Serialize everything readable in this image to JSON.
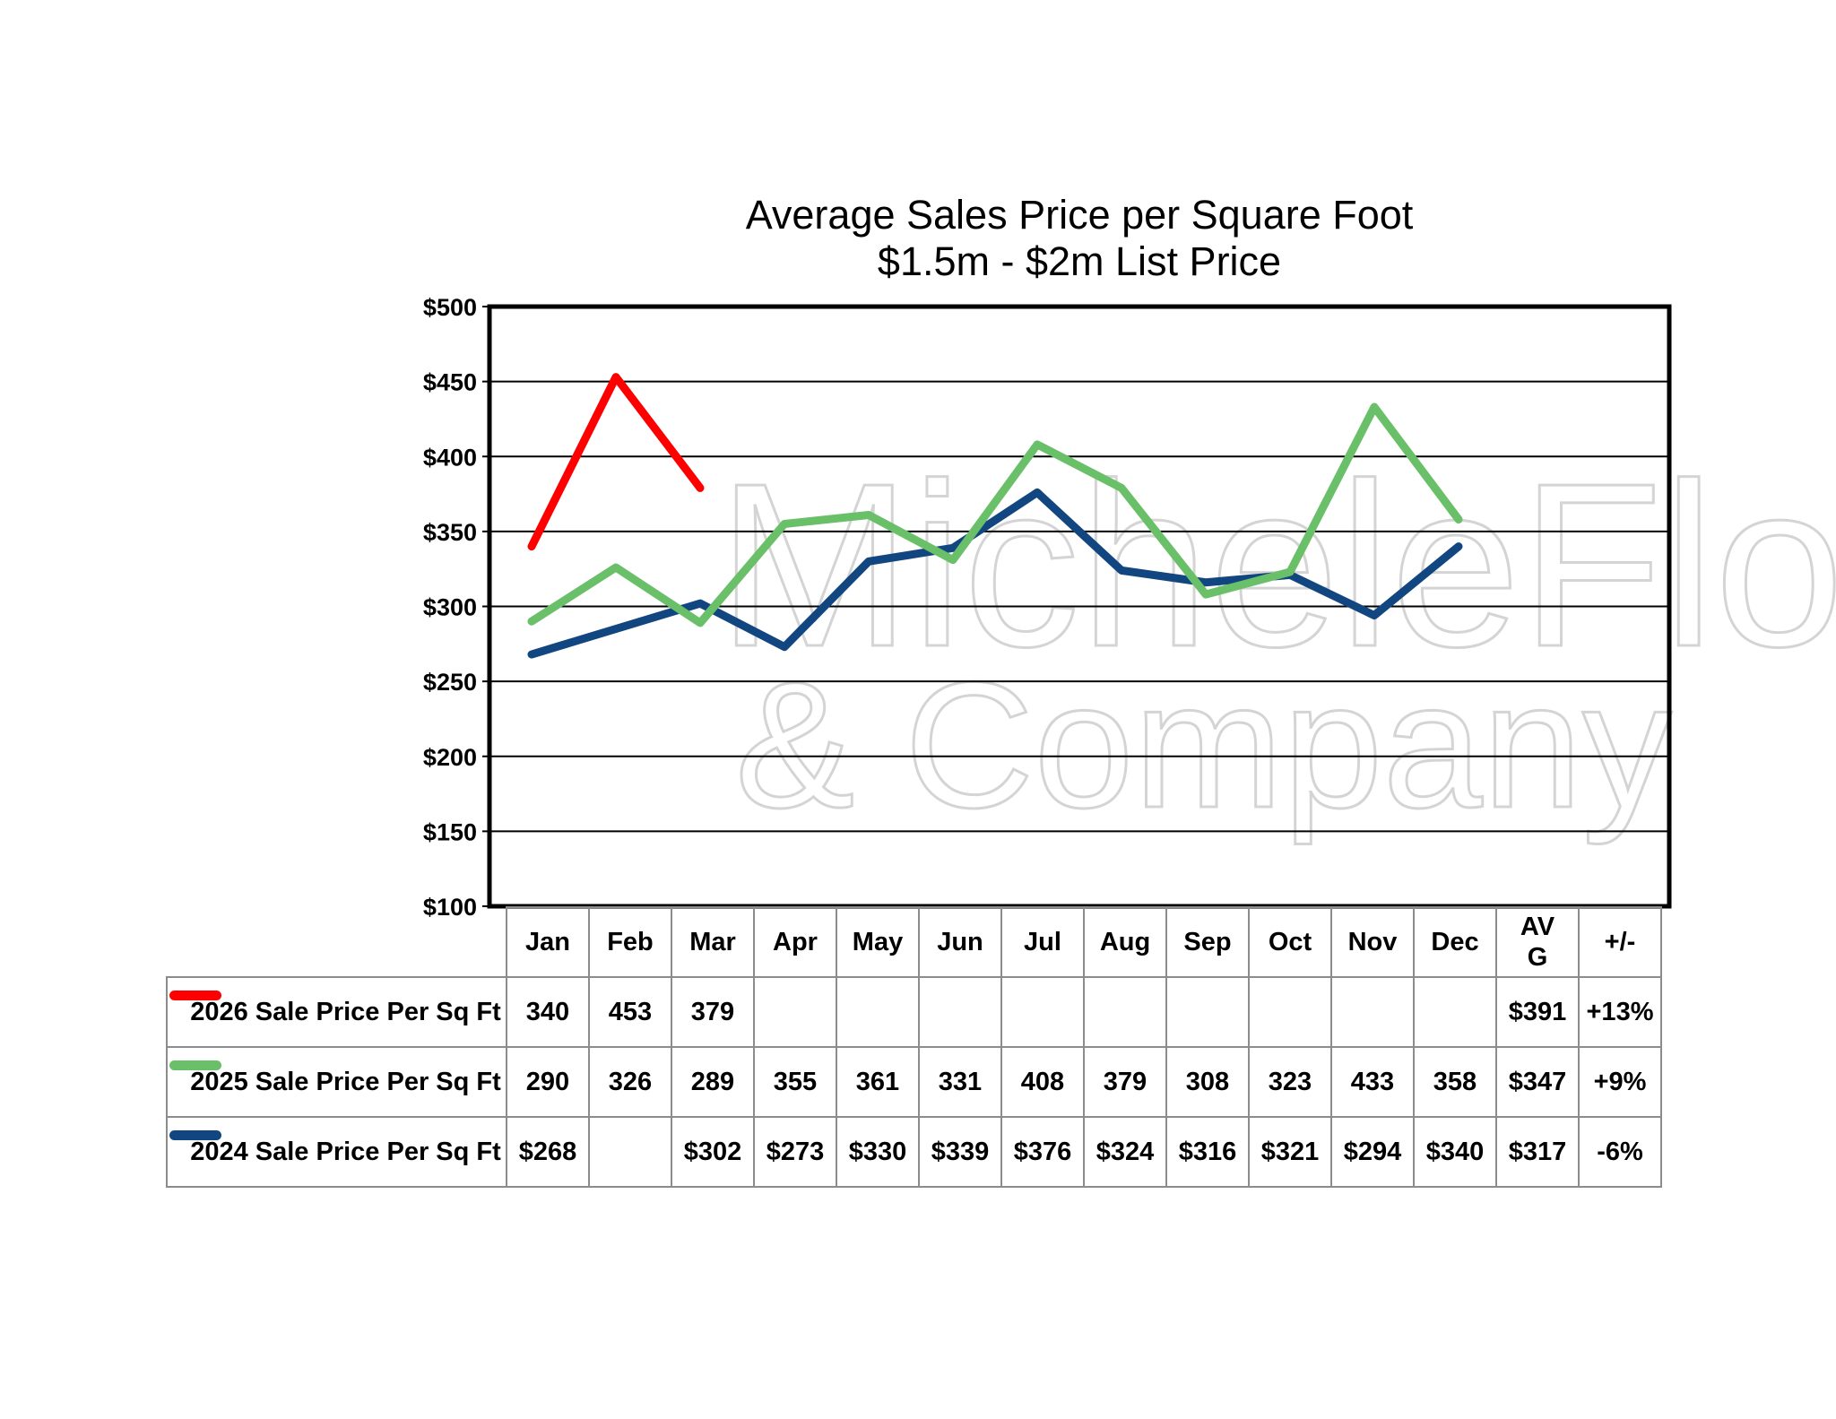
{
  "watermark": {
    "line1": "MicheleFlory",
    "line2": "& Company"
  },
  "chart_data": {
    "type": "line",
    "title": "Average Sales Price per Square Foot",
    "subtitle": "$1.5m - $2m List Price",
    "xlabel": "",
    "ylabel": "",
    "ylim": [
      100,
      500
    ],
    "yticks": [
      100,
      150,
      200,
      250,
      300,
      350,
      400,
      450,
      500
    ],
    "ytick_labels": [
      "$100",
      "$150",
      "$200",
      "$250",
      "$300",
      "$350",
      "$400",
      "$450",
      "$500"
    ],
    "grid": true,
    "legend": "table-bottom",
    "categories": [
      "Jan",
      "Feb",
      "Mar",
      "Apr",
      "May",
      "Jun",
      "Jul",
      "Aug",
      "Sep",
      "Oct",
      "Nov",
      "Dec"
    ],
    "extra_columns": [
      "AV\nG",
      "+/-"
    ],
    "series": [
      {
        "name": "2026 Sale Price Per Sq Ft",
        "color": "#ff0000",
        "values": [
          340,
          453,
          379,
          null,
          null,
          null,
          null,
          null,
          null,
          null,
          null,
          null
        ],
        "display": [
          "340",
          "453",
          "379",
          "",
          "",
          "",
          "",
          "",
          "",
          "",
          "",
          ""
        ],
        "avg": "$391",
        "change": "+13%"
      },
      {
        "name": "2025 Sale Price Per Sq Ft",
        "color": "#6abf69",
        "values": [
          290,
          326,
          289,
          355,
          361,
          331,
          408,
          379,
          308,
          323,
          433,
          358
        ],
        "display": [
          "290",
          "326",
          "289",
          "355",
          "361",
          "331",
          "408",
          "379",
          "308",
          "323",
          "433",
          "358"
        ],
        "avg": "$347",
        "change": "+9%"
      },
      {
        "name": "2024 Sale Price Per Sq Ft",
        "color": "#124680",
        "values": [
          268,
          null,
          302,
          273,
          330,
          339,
          376,
          324,
          316,
          321,
          294,
          340
        ],
        "display": [
          "$268",
          "",
          "$302",
          "$273",
          "$330",
          "$339",
          "$376",
          "$324",
          "$316",
          "$321",
          "$294",
          "$340"
        ],
        "avg": "$317",
        "change": "-6%"
      }
    ]
  }
}
